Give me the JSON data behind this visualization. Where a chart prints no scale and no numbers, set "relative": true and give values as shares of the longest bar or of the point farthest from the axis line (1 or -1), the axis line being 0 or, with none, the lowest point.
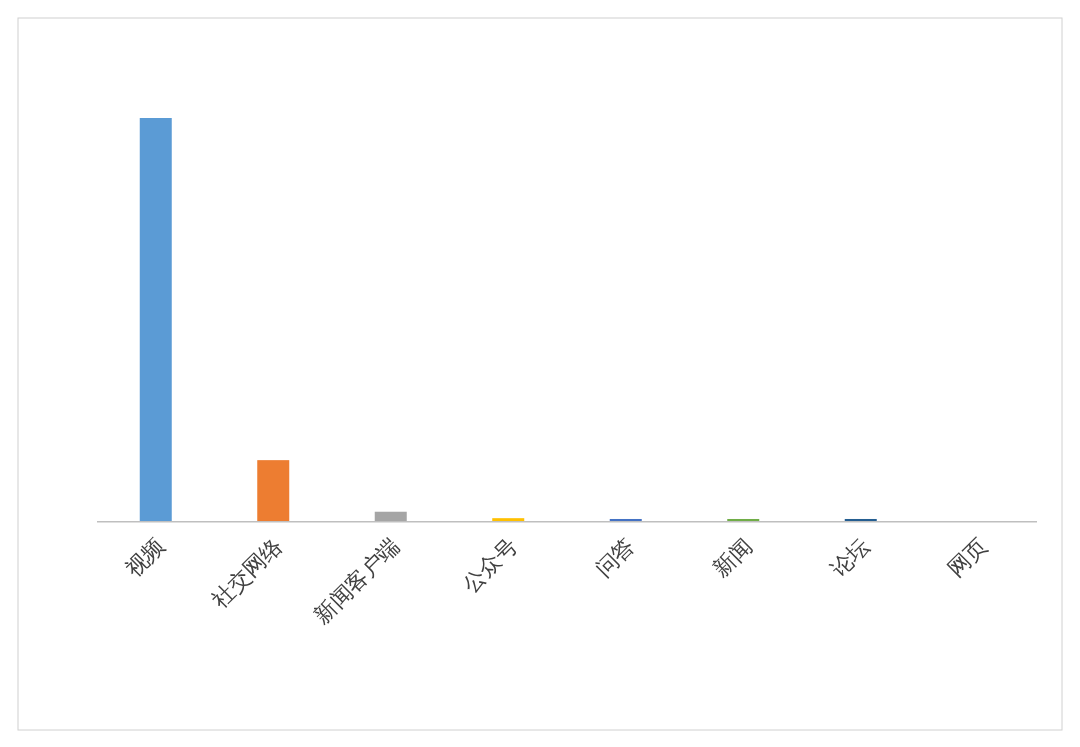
{
  "chart_data": {
    "type": "bar",
    "relative": true,
    "categories": [
      "视频",
      "社交网络",
      "新闻客户端",
      "公众号",
      "问答",
      "新闻",
      "论坛",
      "网页"
    ],
    "values": [
      1,
      0.151,
      0.023,
      0.007,
      0.005,
      0.005,
      0.005,
      0
    ],
    "colors": [
      "#5b9bd5",
      "#ed7d31",
      "#a5a5a5",
      "#ffc000",
      "#4472c4",
      "#70ad47",
      "#255e91",
      "#9e480e"
    ],
    "grid": false
  }
}
